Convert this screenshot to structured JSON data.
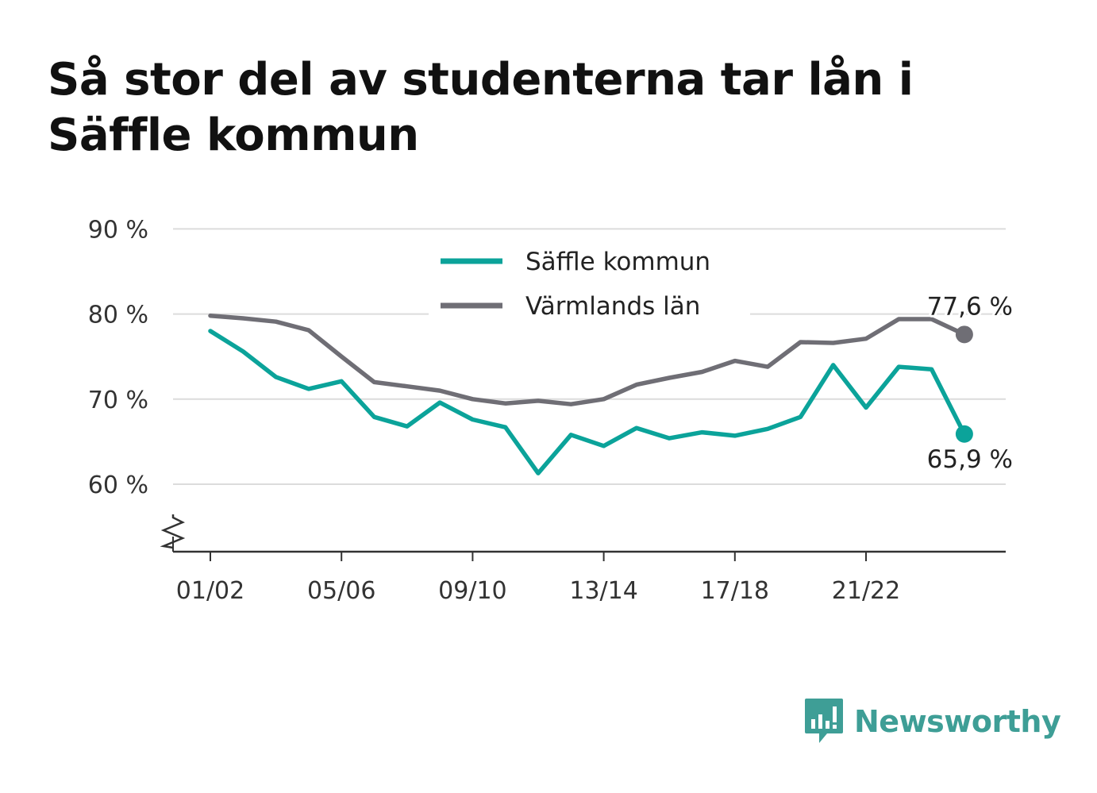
{
  "title": "Så stor del av studenterna tar lån i Säffle kommun",
  "brand": {
    "name": "Newsworthy",
    "icon": "bar-chart-speech-bubble-icon",
    "color": "#3e9e96"
  },
  "chart_data": {
    "type": "line",
    "title": "Så stor del av studenterna tar lån i Säffle kommun",
    "x": [
      "01/02",
      "02/03",
      "03/04",
      "04/05",
      "05/06",
      "06/07",
      "07/08",
      "08/09",
      "09/10",
      "10/11",
      "11/12",
      "12/13",
      "13/14",
      "14/15",
      "15/16",
      "16/17",
      "17/18",
      "18/19",
      "19/20",
      "20/21",
      "21/22",
      "22/23",
      "23/24",
      "24/25"
    ],
    "x_tick_labels": [
      "01/02",
      "05/06",
      "09/10",
      "13/14",
      "17/18",
      "21/22"
    ],
    "y_tick_labels": [
      "60 %",
      "70 %",
      "80 %",
      "90 %"
    ],
    "ylim": [
      53,
      90
    ],
    "y_ticks": [
      60,
      70,
      80,
      90
    ],
    "axis_break": true,
    "grid": true,
    "legend_position": "top-center",
    "series": [
      {
        "name": "Säffle kommun",
        "color": "#0ba39a",
        "values": [
          78.0,
          75.6,
          72.6,
          71.2,
          72.1,
          67.9,
          66.8,
          69.6,
          67.6,
          66.7,
          61.3,
          65.8,
          64.5,
          66.6,
          65.4,
          66.1,
          65.7,
          66.5,
          67.9,
          74.0,
          69.0,
          73.8,
          73.5,
          65.9
        ],
        "end_label": "65,9 %"
      },
      {
        "name": "Värmlands län",
        "color": "#6f6e75",
        "values": [
          79.8,
          79.5,
          79.1,
          78.1,
          75.0,
          72.0,
          71.5,
          71.0,
          70.0,
          69.5,
          69.8,
          69.4,
          70.0,
          71.7,
          72.5,
          73.2,
          74.5,
          73.8,
          76.7,
          76.6,
          77.1,
          79.4,
          79.4,
          77.6
        ],
        "end_label": "77,6 %"
      }
    ]
  }
}
